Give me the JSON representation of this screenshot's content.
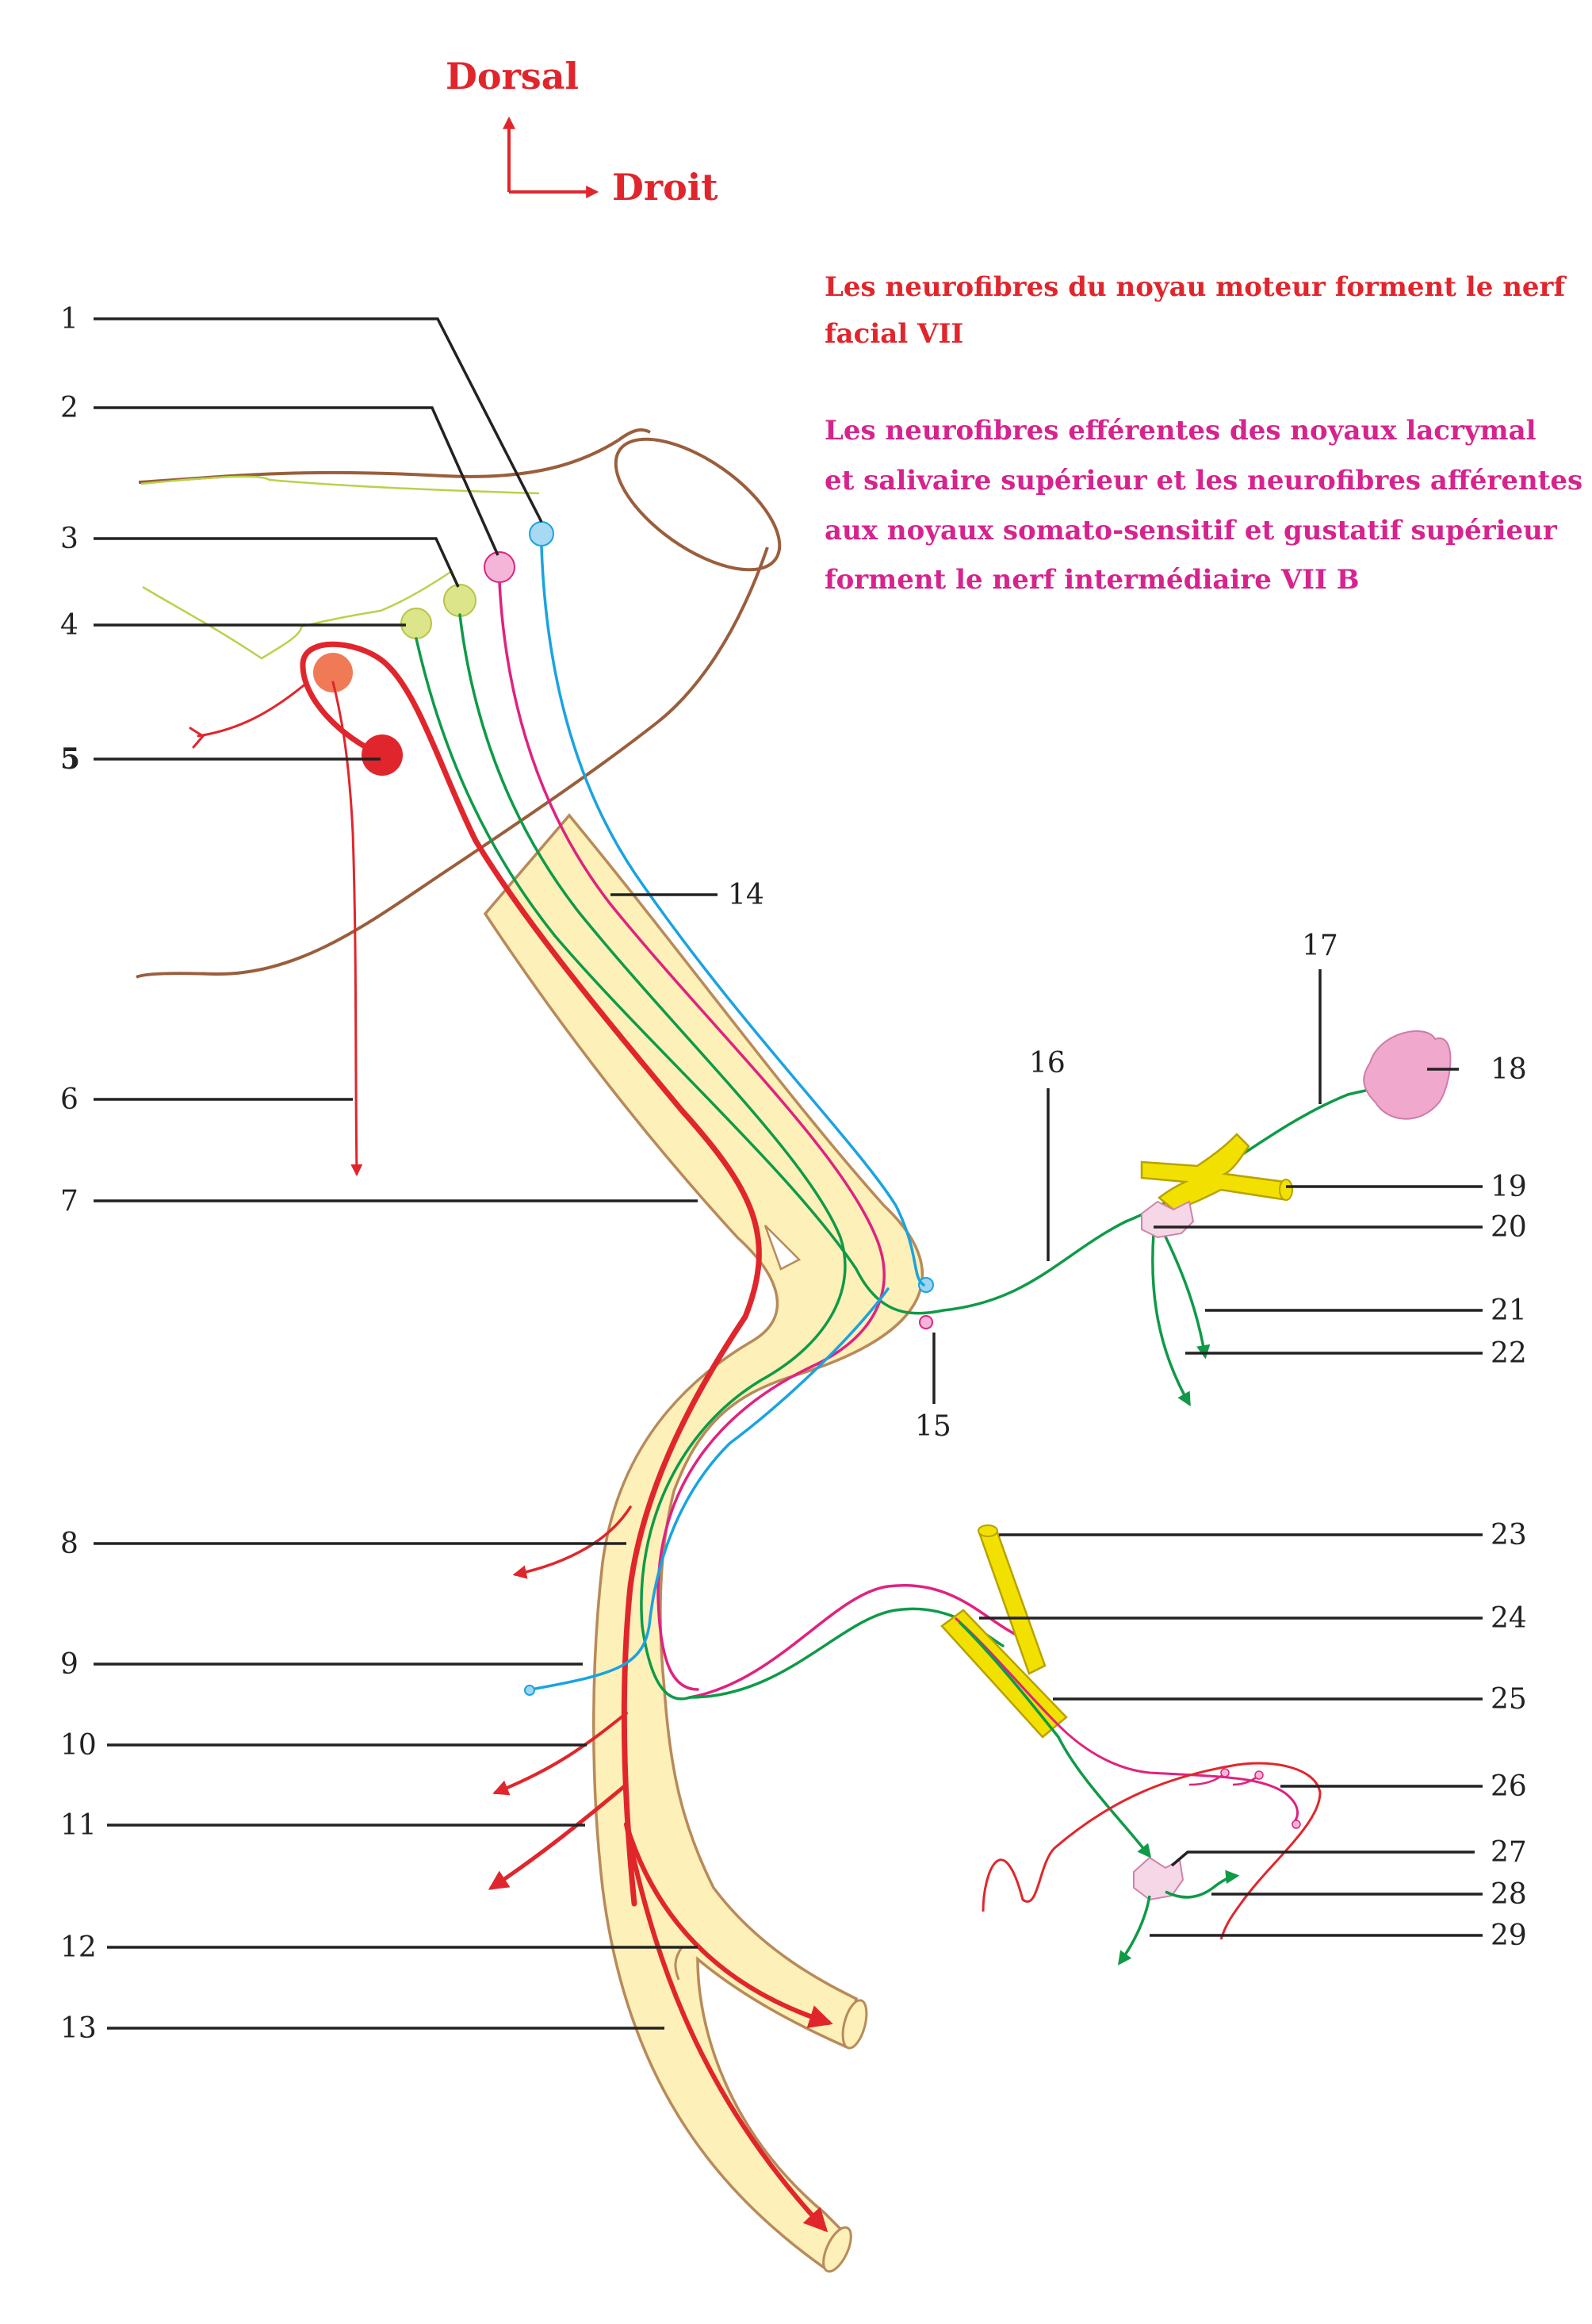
{
  "orientation": {
    "dorsal": "Dorsal",
    "droit": "Droit"
  },
  "notes": {
    "motor": [
      "Les neurofibres du noyau moteur forment le nerf",
      "facial VII"
    ],
    "intermediate": [
      "Les neurofibres efférentes des noyaux lacrymal",
      "et salivaire supérieur et les neurofibres afférentes",
      "aux noyaux somato-sensitif et gustatif supérieur",
      "forment le nerf intermédiaire VII B"
    ]
  },
  "labels": {
    "l1": "1",
    "l2": "2",
    "l3": "3",
    "l4": "4",
    "l5": "5",
    "l6": "6",
    "l7": "7",
    "l8": "8",
    "l9": "9",
    "l10": "10",
    "l11": "11",
    "l12": "12",
    "l13": "13",
    "l14": "14",
    "l15": "15",
    "l16": "16",
    "l17": "17",
    "l18": "18",
    "l19": "19",
    "l20": "20",
    "l21": "21",
    "l22": "22",
    "l23": "23",
    "l24": "24",
    "l25": "25",
    "l26": "26",
    "l27": "27",
    "l28": "28",
    "l29": "29"
  },
  "colors": {
    "motor_red": "#e0262c",
    "parasympathetic_green": "#0f9a48",
    "taste_magenta": "#e0227f",
    "sensory_cyan": "#1aa3e0",
    "nerve_fill": "#fdf0b8",
    "nerve_outline": "#b88a5a",
    "brainstem_outline": "#9a5e3c",
    "yellow_nerve": "#f2e100",
    "gland_pink": "#f0a8cc"
  }
}
